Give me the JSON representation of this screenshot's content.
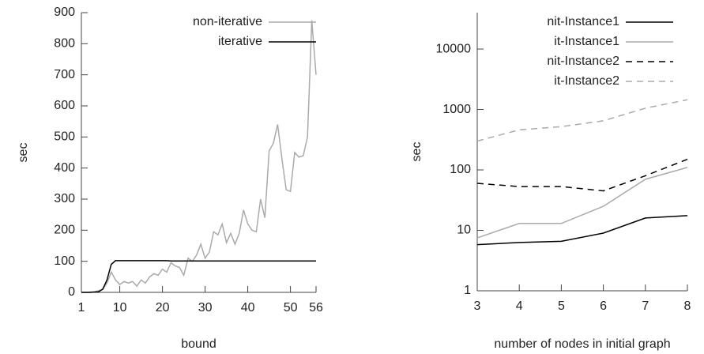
{
  "chart_data": [
    {
      "type": "line",
      "xlabel": "bound",
      "ylabel": "sec",
      "x": [
        1,
        2,
        3,
        4,
        5,
        6,
        7,
        8,
        9,
        10,
        11,
        12,
        13,
        14,
        15,
        16,
        17,
        18,
        19,
        20,
        21,
        22,
        23,
        24,
        25,
        26,
        27,
        28,
        29,
        30,
        31,
        32,
        33,
        34,
        35,
        36,
        37,
        38,
        39,
        40,
        41,
        42,
        43,
        44,
        45,
        46,
        47,
        48,
        49,
        50,
        51,
        52,
        53,
        54,
        55,
        56
      ],
      "series": [
        {
          "name": "non-iterative",
          "color": "#aaaaaa",
          "dash": false,
          "values": [
            0,
            0,
            1,
            2,
            5,
            10,
            30,
            65,
            40,
            25,
            35,
            30,
            35,
            20,
            40,
            30,
            50,
            60,
            55,
            75,
            65,
            95,
            85,
            80,
            55,
            110,
            100,
            120,
            155,
            110,
            130,
            195,
            185,
            220,
            160,
            190,
            155,
            190,
            265,
            220,
            200,
            195,
            300,
            240,
            455,
            480,
            540,
            430,
            330,
            325,
            450,
            435,
            440,
            500,
            875,
            700
          ]
        },
        {
          "name": "iterative",
          "color": "#000000",
          "dash": false,
          "values": [
            0,
            0,
            0,
            1,
            2,
            10,
            40,
            90,
            102,
            102,
            102,
            102,
            102,
            102,
            102,
            102,
            102,
            102,
            102,
            102,
            102,
            101,
            101,
            101,
            101,
            101,
            101,
            101,
            101,
            101,
            101,
            101,
            101,
            101,
            101,
            101,
            101,
            101,
            101,
            101,
            101,
            101,
            101,
            101,
            101,
            101,
            101,
            101,
            101,
            101,
            101,
            101,
            101,
            101,
            101,
            101
          ]
        }
      ],
      "xlim": [
        1,
        56
      ],
      "xticks": [
        1,
        10,
        20,
        30,
        40,
        50,
        56
      ],
      "ylim": [
        0,
        900
      ],
      "yticks": [
        0,
        100,
        200,
        300,
        400,
        500,
        600,
        700,
        800,
        900
      ],
      "log_y": false,
      "legend": "upper right"
    },
    {
      "type": "line",
      "xlabel": "number of nodes in initial graph",
      "ylabel": "sec",
      "x": [
        3,
        4,
        5,
        6,
        7,
        8
      ],
      "series": [
        {
          "name": "nit-Instance1",
          "color": "#000000",
          "dash": false,
          "values": [
            5.8,
            6.3,
            6.6,
            9,
            16,
            17.5
          ]
        },
        {
          "name": "it-Instance1",
          "color": "#aaaaaa",
          "dash": false,
          "values": [
            7.5,
            13,
            13,
            25,
            70,
            110
          ]
        },
        {
          "name": "nit-Instance2",
          "color": "#000000",
          "dash": true,
          "values": [
            60,
            53,
            53,
            45,
            80,
            150
          ]
        },
        {
          "name": "it-Instance2",
          "color": "#aaaaaa",
          "dash": true,
          "values": [
            300,
            460,
            520,
            650,
            1050,
            1450
          ]
        }
      ],
      "xlim": [
        3,
        8
      ],
      "xticks": [
        3,
        4,
        5,
        6,
        7,
        8
      ],
      "ylim": [
        1,
        40000
      ],
      "yticks": [
        1,
        10,
        100,
        1000,
        10000
      ],
      "log_y": true,
      "legend": "upper right"
    }
  ]
}
